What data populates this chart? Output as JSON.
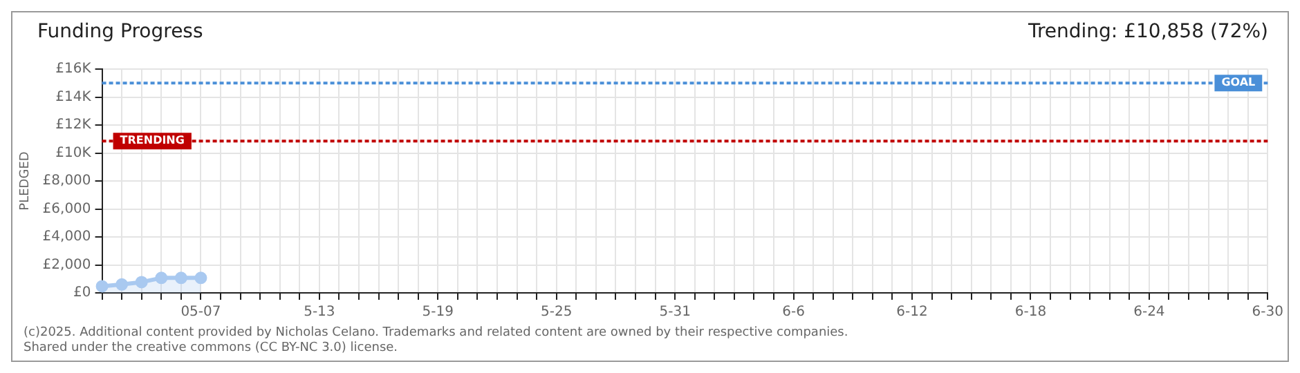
{
  "chart_data": {
    "type": "area",
    "title": "Funding Progress",
    "subtitle": "Trending: £10,858 (72%)",
    "ylabel": "PLEDGED",
    "categories": [
      null,
      null,
      null,
      null,
      null,
      "05-07",
      null,
      null,
      null,
      null,
      null,
      "5-13",
      null,
      null,
      null,
      null,
      null,
      "5-19",
      null,
      null,
      null,
      null,
      null,
      "5-25",
      null,
      null,
      null,
      null,
      null,
      "5-31",
      null,
      null,
      null,
      null,
      null,
      "6-6",
      null,
      null,
      null,
      null,
      null,
      "6-12",
      null,
      null,
      null,
      null,
      null,
      "6-18",
      null,
      null,
      null,
      null,
      null,
      "6-24",
      null,
      null,
      null,
      null,
      null,
      "6-30"
    ],
    "series": [
      {
        "color": "#a9c9f0",
        "values": [
          470,
          600,
          770,
          1070,
          1070,
          1070,
          null,
          null,
          null,
          null,
          null,
          null,
          null,
          null,
          null,
          null,
          null,
          null,
          null,
          null,
          null,
          null,
          null,
          null,
          null,
          null,
          null,
          null,
          null,
          null,
          null,
          null,
          null,
          null,
          null,
          null,
          null,
          null,
          null,
          null,
          null,
          null,
          null,
          null,
          null,
          null,
          null,
          null,
          null,
          null,
          null,
          null,
          null,
          null,
          null,
          null,
          null,
          null,
          null,
          null
        ]
      }
    ],
    "ylim": [
      0,
      16000
    ],
    "yticks": [
      {
        "value": 0,
        "label": "£0"
      },
      {
        "value": 2000,
        "label": "£2,000"
      },
      {
        "value": 4000,
        "label": "£4,000"
      },
      {
        "value": 6000,
        "label": "£6,000"
      },
      {
        "value": 8000,
        "label": "£8,000"
      },
      {
        "value": 10000,
        "label": "£10K"
      },
      {
        "value": 12000,
        "label": "£12K"
      },
      {
        "value": 14000,
        "label": "£14K"
      },
      {
        "value": 16000,
        "label": "£16K"
      }
    ],
    "ref_lines": [
      {
        "axis": "y",
        "value": 15000,
        "label": "GOAL",
        "color": "#4a8fd8",
        "line_style": "dotted"
      },
      {
        "axis": "y",
        "value": 10858,
        "label": "TRENDING",
        "color": "#c00000",
        "line_style": "dotted"
      }
    ],
    "grid": true,
    "legend": false,
    "marker": "circle",
    "line_style": "solid",
    "annotations": [
      "(c)2025. Additional content provided by Nicholas Celano. Trademarks and related content are owned by their respective companies.",
      "Shared under the creative commons (CC BY-NC 3.0) license."
    ]
  }
}
